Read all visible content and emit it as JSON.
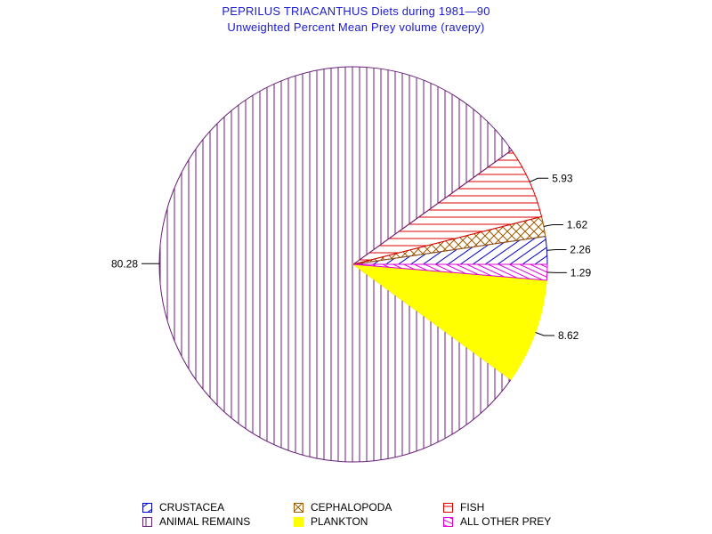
{
  "chart_data": {
    "type": "pie",
    "title": "PEPRILUS TRIACANTHUS Diets during 1981—90",
    "subtitle": "Unweighted Percent Mean Prey volume (ravepy)",
    "slices": [
      {
        "name": "CRUSTACEA",
        "value": 2.26,
        "label": "2.26",
        "color": "#0000cc",
        "pattern": "diag-right"
      },
      {
        "name": "CEPHALOPODA",
        "value": 1.62,
        "label": "1.62",
        "color": "#a05a00",
        "pattern": "crosshatch"
      },
      {
        "name": "FISH",
        "value": 5.93,
        "label": "5.93",
        "color": "#dd0000",
        "pattern": "horizontal"
      },
      {
        "name": "ANIMAL REMAINS",
        "value": 80.28,
        "label": "80.28",
        "color": "#6a1f7a",
        "pattern": "vertical"
      },
      {
        "name": "PLANKTON",
        "value": 8.62,
        "label": "8.62",
        "color": "#ffff00",
        "pattern": "solid"
      },
      {
        "name": "ALL OTHER PREY",
        "value": 1.29,
        "label": "1.29",
        "color": "#dd00dd",
        "pattern": "diag-left"
      }
    ],
    "legend_position": "bottom",
    "legend_rows": [
      [
        "CRUSTACEA",
        "CEPHALOPODA",
        "FISH"
      ],
      [
        "ANIMAL REMAINS",
        "PLANKTON",
        "ALL OTHER PREY"
      ]
    ]
  }
}
